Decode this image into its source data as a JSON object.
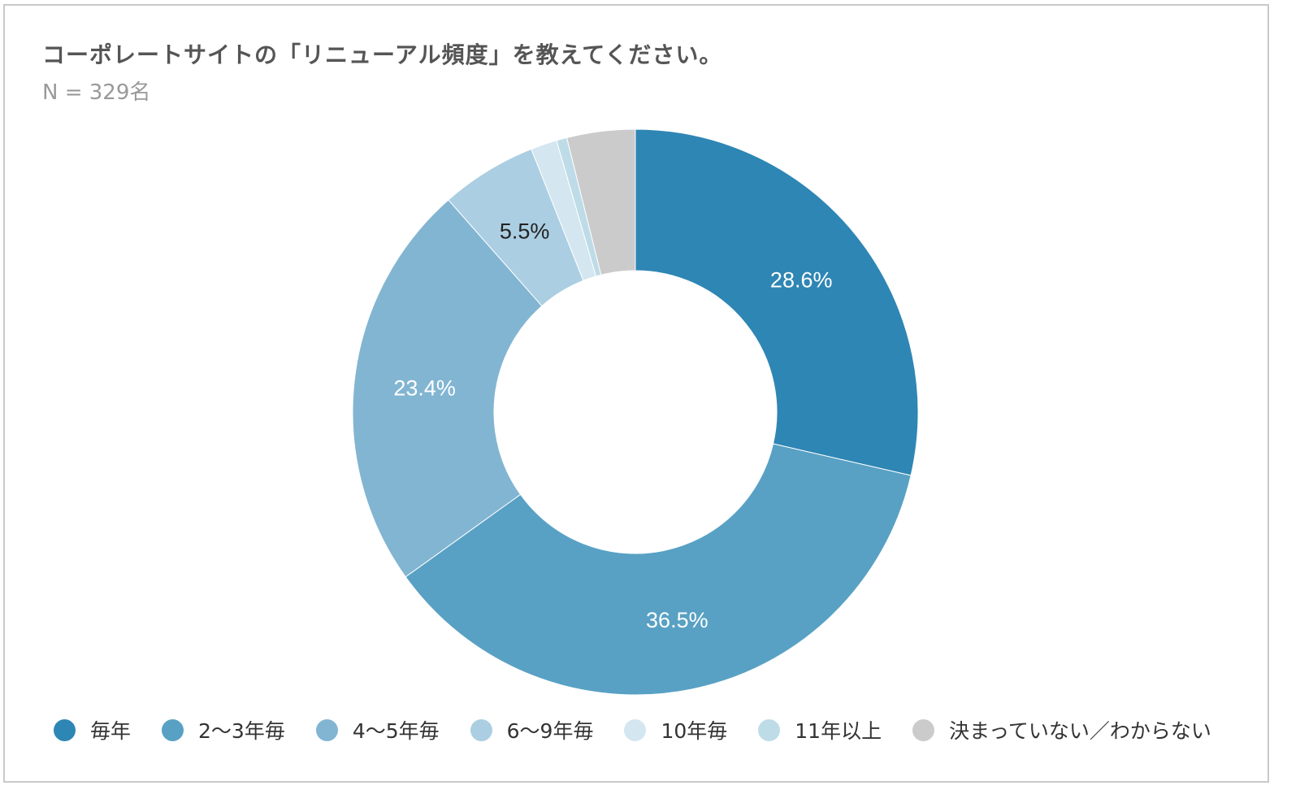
{
  "chart_data": {
    "type": "pie",
    "variant": "donut",
    "title": "コーポレートサイトの「リニューアル頻度」を教えてください。",
    "subtitle": "N = 329名",
    "legend_position": "bottom",
    "slices": [
      {
        "label": "毎年",
        "value": 28.6,
        "display": "28.6%",
        "color": "#2e86b4",
        "label_color": "#ffffff"
      },
      {
        "label": "2〜3年毎",
        "value": 36.5,
        "display": "36.5%",
        "color": "#58a1c4",
        "label_color": "#ffffff"
      },
      {
        "label": "4〜5年毎",
        "value": 23.4,
        "display": "23.4%",
        "color": "#82b5d2",
        "label_color": "#ffffff"
      },
      {
        "label": "6〜9年毎",
        "value": 5.5,
        "display": "5.5%",
        "color": "#abcee2",
        "label_color": "#222222"
      },
      {
        "label": "10年毎",
        "value": 1.5,
        "display": "",
        "color": "#d4e6f0",
        "label_color": "#222222"
      },
      {
        "label": "11年以上",
        "value": 0.6,
        "display": "",
        "color": "#bedbe8",
        "label_color": "#222222"
      },
      {
        "label": "決まっていない／わからない",
        "value": 3.9,
        "display": "",
        "color": "#cbcbcb",
        "label_color": "#222222"
      }
    ]
  }
}
